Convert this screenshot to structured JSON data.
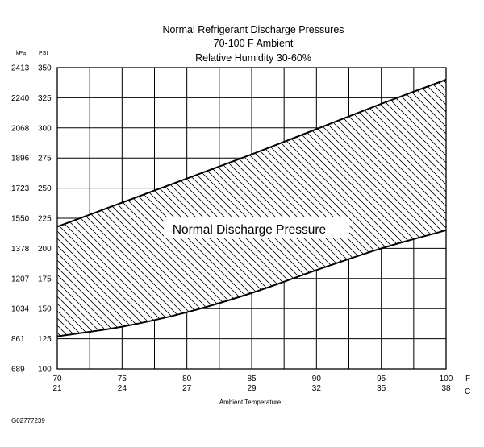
{
  "chart_data": {
    "type": "area",
    "title": "Normal Refrigerant Discharge Pressures",
    "subtitle_lines": [
      "70-100 F Ambient",
      "Relative Humidity 30-60%"
    ],
    "xlabel": "Ambient Temperature",
    "y_unit_left": "kPa",
    "y_unit_right": "PSI",
    "x_unit_primary": "F",
    "x_unit_secondary": "C",
    "xlim": [
      70,
      100
    ],
    "ylim": [
      100,
      350
    ],
    "x_ticks_f": [
      "70",
      "75",
      "80",
      "85",
      "90",
      "95",
      "100"
    ],
    "x_ticks_c": [
      "21",
      "24",
      "27",
      "29",
      "32",
      "35",
      "38"
    ],
    "y_ticks_psi": [
      "100",
      "125",
      "150",
      "175",
      "200",
      "225",
      "250",
      "275",
      "300",
      "325",
      "350"
    ],
    "y_ticks_kpa": [
      "689",
      "861",
      "1034",
      "1207",
      "1378",
      "1550",
      "1723",
      "1896",
      "2068",
      "2240",
      "2413"
    ],
    "grid": true,
    "series": [
      {
        "name": "",
        "x": [
          70,
          75,
          80,
          85,
          90,
          95,
          100
        ],
        "values": [
          218,
          238,
          258,
          278,
          299,
          320,
          340
        ]
      },
      {
        "name": "",
        "x": [
          70,
          75,
          80,
          85,
          90,
          95,
          100
        ],
        "values": [
          127,
          135,
          147,
          163,
          182,
          200,
          215
        ]
      }
    ],
    "annotations": [
      {
        "text": "Normal Discharge Pressure",
        "x": 86.2,
        "y": 219
      }
    ]
  },
  "figure_code": "G02777239"
}
